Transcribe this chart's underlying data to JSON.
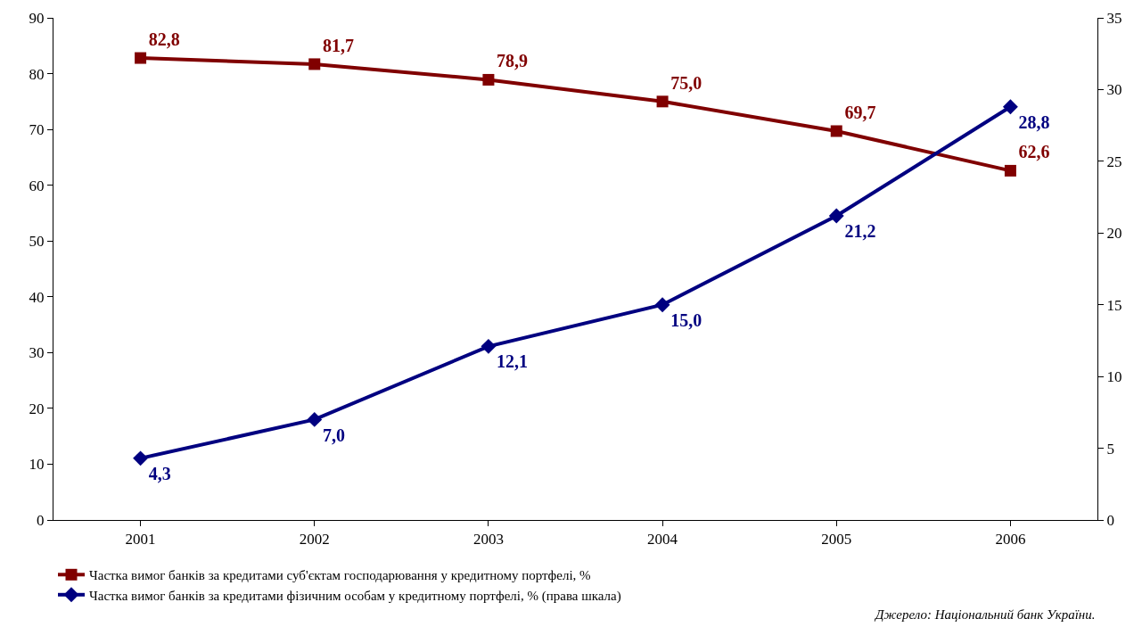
{
  "chart_data": {
    "type": "line",
    "categories": [
      "2001",
      "2002",
      "2003",
      "2004",
      "2005",
      "2006"
    ],
    "series": [
      {
        "name": "Частка вимог банків за кредитами суб'єктам господарювання у кредитному портфелі, %",
        "color": "#800000",
        "marker": "square",
        "values": [
          82.8,
          81.7,
          78.9,
          75.0,
          69.7,
          62.6
        ],
        "value_labels": [
          "82,8",
          "81,7",
          "78,9",
          "75,0",
          "69,7",
          "62,6"
        ]
      },
      {
        "name": "Частка вимог банків за кредитами фізичним особам у кредитному портфелі, % (права шкала)",
        "color": "#000080",
        "marker": "diamond",
        "axis": "y2",
        "values": [
          4.3,
          7.0,
          12.1,
          15.0,
          21.2,
          28.8
        ],
        "value_labels": [
          "4,3",
          "7,0",
          "12,1",
          "15,0",
          "21,2",
          "28,8"
        ]
      }
    ],
    "ylim": [
      0,
      90
    ],
    "yticks": [
      0,
      10,
      20,
      30,
      40,
      50,
      60,
      70,
      80,
      90
    ],
    "y2lim": [
      0,
      35
    ],
    "y2ticks": [
      0,
      5,
      10,
      15,
      20,
      25,
      30,
      35
    ],
    "legend": "bottom left",
    "line_style": "solid",
    "annotations": [
      "Джерело: Національний банк України."
    ]
  }
}
